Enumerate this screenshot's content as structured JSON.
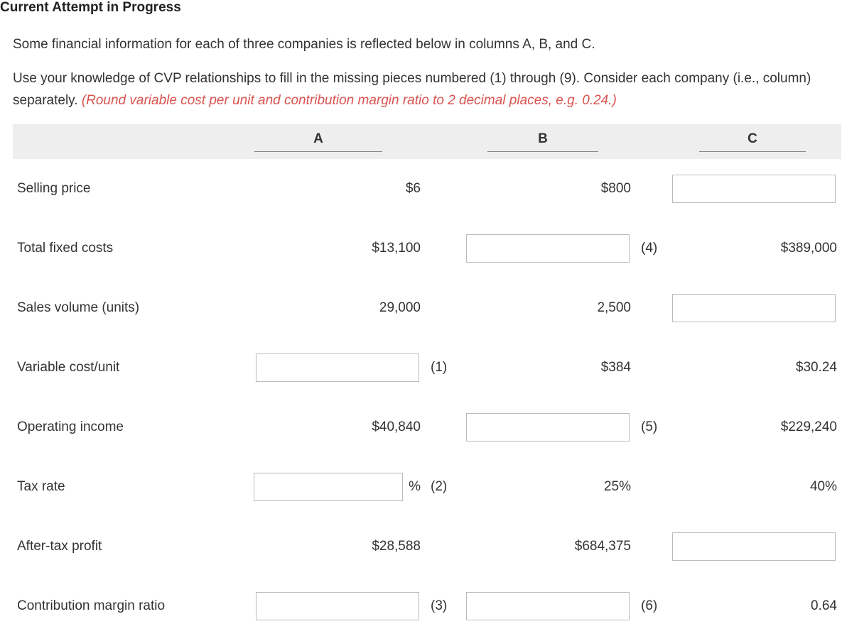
{
  "heading": "Current Attempt in Progress",
  "intro_p1": "Some financial information for each of three companies is reflected below in columns A, B, and C.",
  "intro_p2a": "Use your knowledge of CVP relationships to fill in the missing pieces numbered (1) through (9). Consider each company (i.e., column) separately. ",
  "intro_p2b": "(Round variable cost per unit and contribution margin ratio to 2 decimal places, e.g. 0.24.)",
  "columns": {
    "A": "A",
    "B": "B",
    "C": "C"
  },
  "rows": {
    "selling_price": {
      "label": "Selling price",
      "A": "$6",
      "A_tag": "",
      "B": "$800",
      "B_tag": "",
      "C_input": true
    },
    "fixed_costs": {
      "label": "Total fixed costs",
      "A": "$13,100",
      "A_tag": "",
      "B_input": true,
      "B_tag": "(4)",
      "C": "$389,000"
    },
    "sales_vol": {
      "label": "Sales volume (units)",
      "A": "29,000",
      "A_tag": "",
      "B": "2,500",
      "B_tag": "",
      "C_input": true
    },
    "var_cost": {
      "label": "Variable cost/unit",
      "A_input": true,
      "A_tag": "(1)",
      "B": "$384",
      "B_tag": "",
      "C": "$30.24"
    },
    "op_income": {
      "label": "Operating income",
      "A": "$40,840",
      "A_tag": "",
      "B_input": true,
      "B_tag": "(5)",
      "C": "$229,240"
    },
    "tax_rate": {
      "label": "Tax rate",
      "A_input": true,
      "A_suffix": "%",
      "A_tag": "(2)",
      "B": "25%",
      "B_tag": "",
      "C": "40%"
    },
    "after_tax": {
      "label": "After-tax profit",
      "A": "$28,588",
      "A_tag": "",
      "B": "$684,375",
      "B_tag": "",
      "C_input": true
    },
    "cm_ratio": {
      "label": "Contribution margin ratio",
      "A_input": true,
      "A_tag": "(3)",
      "B_input": true,
      "B_tag": "(6)",
      "C": "0.64"
    }
  }
}
